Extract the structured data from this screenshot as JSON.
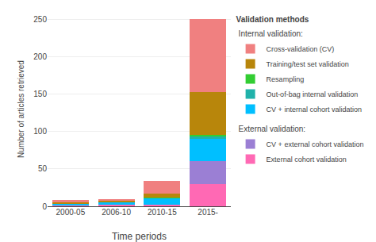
{
  "chart_data": {
    "type": "bar",
    "stacked": true,
    "grid": true,
    "legend": "right",
    "xlabel": "Time periods",
    "ylabel": "Number of articles retrieved",
    "categories": [
      "2000-05",
      "2006-10",
      "2010-15",
      "2015-"
    ],
    "ylim": [
      0,
      260
    ],
    "yticks": [
      0,
      50,
      100,
      150,
      200,
      250
    ],
    "series": [
      {
        "name": "External cohort validation",
        "color": "#FF69B4",
        "values": [
          1,
          2,
          2,
          30
        ]
      },
      {
        "name": "CV + external cohort validation",
        "color": "#9B7FD4",
        "values": [
          0,
          0,
          0,
          30
        ]
      },
      {
        "name": "CV + internal cohort validation",
        "color": "#00BFFF",
        "values": [
          3,
          4,
          9,
          30
        ]
      },
      {
        "name": "Out-of-bag internal validation",
        "color": "#20B2AA",
        "values": [
          0,
          0,
          0,
          3
        ]
      },
      {
        "name": "Resampling",
        "color": "#32CD32",
        "values": [
          0,
          0,
          1,
          3
        ]
      },
      {
        "name": "Training/test set validation",
        "color": "#B8860B",
        "values": [
          1,
          1,
          5,
          57
        ]
      },
      {
        "name": "Cross-validation (CV)",
        "color": "#F08080",
        "values": [
          3,
          3,
          17,
          97
        ]
      }
    ],
    "legend_title": "Validation methods",
    "legend_groups": [
      {
        "title": "Internal validation:",
        "series": [
          "Cross-validation (CV)",
          "Training/test set validation",
          "Resampling",
          "Out-of-bag internal validation",
          "CV + internal cohort validation"
        ]
      },
      {
        "title": "External validation:",
        "series": [
          "CV + external cohort validation",
          "External cohort validation"
        ]
      }
    ]
  }
}
